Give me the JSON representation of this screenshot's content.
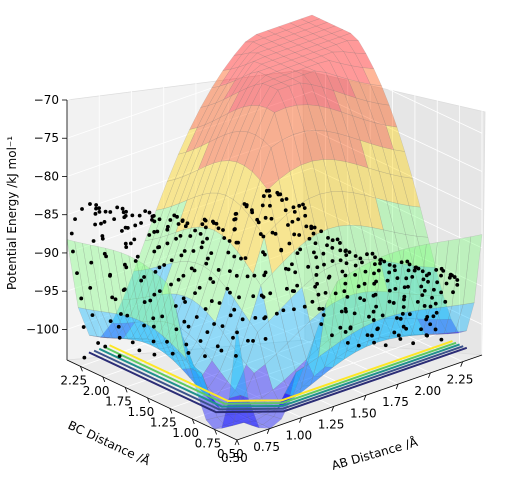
{
  "chart_data": {
    "type": "surface3d",
    "title": "",
    "xlabel": "AB Distance /Å",
    "ylabel": "BC Distance /Å",
    "zlabel": "Potential Energy /kJ mol⁻¹",
    "x_ticks": [
      "0.50",
      "0.75",
      "1.00",
      "1.25",
      "1.50",
      "1.75",
      "2.00",
      "2.25"
    ],
    "y_ticks": [
      "0.50",
      "0.75",
      "1.00",
      "1.25",
      "1.50",
      "1.75",
      "2.00",
      "2.25"
    ],
    "z_ticks": [
      "−70",
      "−75",
      "−80",
      "−85",
      "−90",
      "−95",
      "−100"
    ],
    "xlim": [
      0.5,
      2.4
    ],
    "ylim": [
      0.5,
      2.4
    ],
    "zlim": [
      -104,
      -70
    ],
    "surface_colormap": [
      "#0000ff",
      "#00b4ff",
      "#7fff7f",
      "#ffd200",
      "#ff4a00",
      "#ff0000"
    ],
    "contour_colors": [
      "#2b2d76",
      "#3b528b",
      "#21918c",
      "#5ec962",
      "#fde725"
    ],
    "trajectory_color": "#000000",
    "grid": true
  }
}
